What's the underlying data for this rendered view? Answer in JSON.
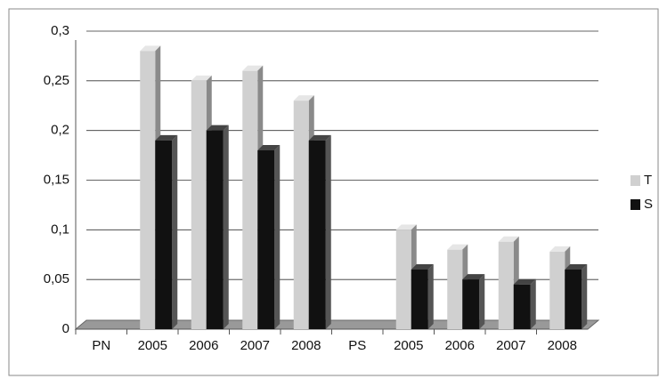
{
  "chart_data": {
    "type": "bar",
    "categories": [
      "PN",
      "2005",
      "2006",
      "2007",
      "2008",
      "PS",
      "2005",
      "2006",
      "2007",
      "2008"
    ],
    "series": [
      {
        "name": "T",
        "color": "#d0d0d0",
        "values": [
          null,
          0.28,
          0.25,
          0.26,
          0.23,
          null,
          0.1,
          0.08,
          0.088,
          0.078
        ]
      },
      {
        "name": "S",
        "color": "#111111",
        "values": [
          null,
          0.19,
          0.2,
          0.18,
          0.19,
          null,
          0.06,
          0.05,
          0.045,
          0.06
        ]
      }
    ],
    "ylim": [
      0,
      0.3
    ],
    "yticks": [
      0,
      {
        "value": 0.05,
        "label": "0,05"
      },
      {
        "value": 0.1,
        "label": "0,1"
      },
      {
        "value": 0.15,
        "label": "0,15"
      },
      {
        "value": 0.2,
        "label": "0,2"
      },
      {
        "value": 0.25,
        "label": "0,25"
      },
      {
        "value": 0.3,
        "label": "0,3"
      }
    ],
    "grid": true,
    "legend": "right"
  }
}
